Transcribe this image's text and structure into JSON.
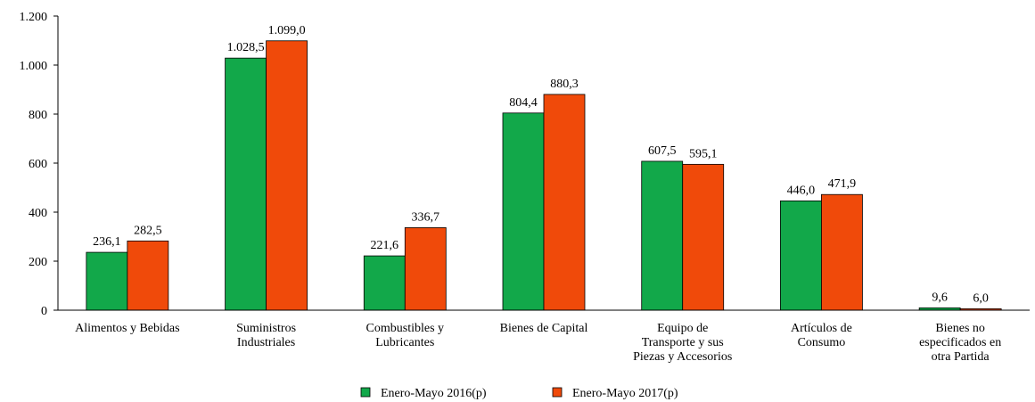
{
  "chart_data": {
    "type": "bar",
    "categories": [
      "Alimentos y Bebidas",
      "Suministros\nIndustriales",
      "Combustibles y\nLubricantes",
      "Bienes de Capital",
      "Equipo de\nTransporte y sus\nPiezas y Accesorios",
      "Artículos de\nConsumo",
      "Bienes no\nespecificados en\notra Partida"
    ],
    "series": [
      {
        "name": "Enero-Mayo 2016(p)",
        "color": "#12a84a",
        "values": [
          236.1,
          1028.5,
          221.6,
          804.4,
          607.5,
          446.0,
          9.6
        ],
        "value_labels": [
          "236,1",
          "1.028,5",
          "221,6",
          "804,4",
          "607,5",
          "446,0",
          "9,6"
        ]
      },
      {
        "name": "Enero-Mayo 2017(p)",
        "color": "#f04a0a",
        "values": [
          282.5,
          1099.0,
          336.7,
          880.3,
          595.1,
          471.9,
          6.0
        ],
        "value_labels": [
          "282,5",
          "1.099,0",
          "336,7",
          "880,3",
          "595,1",
          "471,9",
          "6,0"
        ]
      }
    ],
    "ylim": [
      0,
      1200
    ],
    "yticks": [
      0,
      200,
      400,
      600,
      800,
      {
        "value": 1000,
        "label": "1.000"
      },
      {
        "value": 1200,
        "label": "1.200"
      }
    ],
    "legend": "bottom"
  }
}
